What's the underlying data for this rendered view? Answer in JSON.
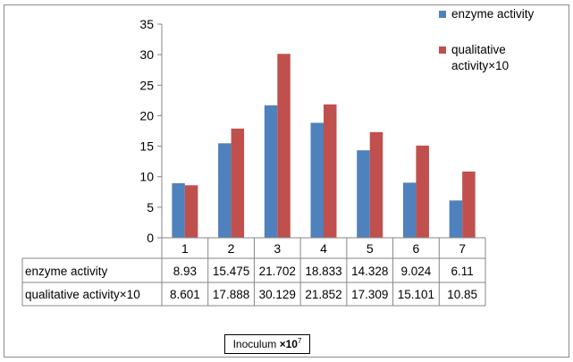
{
  "chart_data": {
    "type": "bar",
    "categories": [
      "1",
      "2",
      "3",
      "4",
      "5",
      "6",
      "7"
    ],
    "series": [
      {
        "name": "enzyme activity",
        "color": "#4f81bd",
        "values": [
          8.93,
          15.475,
          21.702,
          18.833,
          14.328,
          9.024,
          6.11
        ]
      },
      {
        "name": "qualitative activity×10",
        "color": "#c0504d",
        "values": [
          8.601,
          17.888,
          30.129,
          21.852,
          17.309,
          15.101,
          10.85
        ]
      }
    ],
    "table_values": [
      [
        "8.93",
        "15.475",
        "21.702",
        "18.833",
        "14.328",
        "9.024",
        "6.11"
      ],
      [
        "8.601",
        "17.888",
        "30.129",
        "21.852",
        "17.309",
        "15.101",
        "10.85"
      ]
    ],
    "yticks": [
      "0",
      "5",
      "10",
      "15",
      "20",
      "25",
      "30",
      "35"
    ],
    "ylim": [
      0,
      35
    ],
    "xlabel": {
      "text": "Inoculum ",
      "mult": "×10",
      "exp": "7"
    },
    "legend": {
      "placement": "top-right",
      "entries": [
        {
          "lines": [
            "enzyme activity"
          ],
          "color": "#4f81bd"
        },
        {
          "lines": [
            "qualitative",
            "activity×10"
          ],
          "color": "#c0504d"
        }
      ]
    },
    "grid": false
  }
}
